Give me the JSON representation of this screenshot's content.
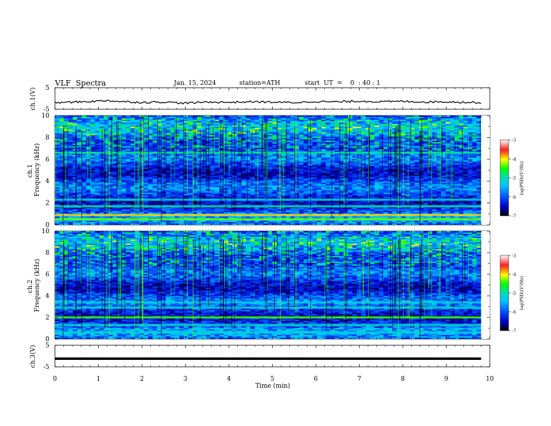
{
  "header": {
    "title": "VLF  Spectra",
    "date": "Jan. 15, 2024",
    "station": "station=ATH",
    "start": "start  UT  =    0  : 40 : 1"
  },
  "chart_data": [
    {
      "type": "line",
      "name": "ch1-waveform",
      "ylabel": "ch.1(V)",
      "yticks": [
        "5",
        "-5"
      ],
      "ylim": [
        -5,
        5
      ],
      "x": [
        0.0,
        0.5,
        1.0,
        1.2,
        1.5,
        2.0,
        2.5,
        3.0,
        3.5,
        4.0,
        4.5,
        5.0,
        5.5,
        6.0,
        6.5,
        7.0,
        7.5,
        8.0,
        8.5,
        9.0,
        9.5,
        9.8
      ],
      "y": [
        -2.0,
        -1.6,
        -1.2,
        -0.9,
        -1.4,
        -1.8,
        -1.6,
        -2.2,
        -1.6,
        -1.8,
        -1.5,
        -1.7,
        -1.9,
        -1.4,
        -1.6,
        -1.2,
        -1.5,
        -1.3,
        -1.6,
        -1.5,
        -1.8,
        -1.9
      ]
    },
    {
      "type": "heatmap",
      "name": "ch1-spectrogram",
      "ylabel": "ch.1\nFrequency (kHz)",
      "yticks": [
        "10",
        "8",
        "6",
        "4",
        "2",
        "0"
      ],
      "ylim": [
        0,
        10
      ],
      "xlim": [
        0,
        9.8
      ],
      "colorbar": {
        "label": "log(PSD)(V²/Hz)",
        "ticks": [
          "-3",
          "-4",
          "-5",
          "-6",
          "-7"
        ],
        "range": [
          -7,
          -3
        ]
      },
      "bands": [
        {
          "freq": 0.5,
          "level": -4.3
        },
        {
          "freq": 0.9,
          "level": -3.9
        },
        {
          "freq": 1.7,
          "level": -5.0
        },
        {
          "freq": 2.3,
          "level": -5.3
        },
        {
          "freq": 6.6,
          "level": -5.0
        }
      ]
    },
    {
      "type": "heatmap",
      "name": "ch2-spectrogram",
      "ylabel": "ch.2\nFrequency (kHz)",
      "yticks": [
        "10",
        "8",
        "6",
        "4",
        "2",
        "0"
      ],
      "ylim": [
        0,
        10
      ],
      "xlim": [
        0,
        9.8
      ],
      "colorbar": {
        "label": "log(PSD)(V²/Hz)",
        "ticks": [
          "-3",
          "-4",
          "-5",
          "-6",
          "-7"
        ],
        "range": [
          -7,
          -3
        ]
      },
      "bands": [
        {
          "freq": 2.0,
          "level": -4.4
        },
        {
          "freq": 2.9,
          "level": -5.2
        },
        {
          "freq": 3.4,
          "level": -5.4
        },
        {
          "freq": 1.3,
          "level": -5.2
        },
        {
          "freq": 0.6,
          "level": -5.3
        }
      ]
    },
    {
      "type": "line",
      "name": "ch3-waveform",
      "ylabel": "ch.3(V)",
      "yticks": [
        "5",
        "-5"
      ],
      "ylim": [
        -5,
        5
      ],
      "x": [
        0,
        9.8
      ],
      "y": [
        -1.2,
        -1.2
      ]
    }
  ],
  "xaxis": {
    "label": "Time  (min)",
    "ticks": [
      "0",
      "1",
      "2",
      "3",
      "4",
      "5",
      "6",
      "7",
      "8",
      "9",
      "10"
    ],
    "range": [
      0,
      10
    ]
  },
  "colors": {
    "colormap": [
      "#000000",
      "#0000c8",
      "#0050ff",
      "#00c8ff",
      "#00e0a0",
      "#00ff00",
      "#ffff00",
      "#ff2020",
      "#ffffff"
    ]
  }
}
